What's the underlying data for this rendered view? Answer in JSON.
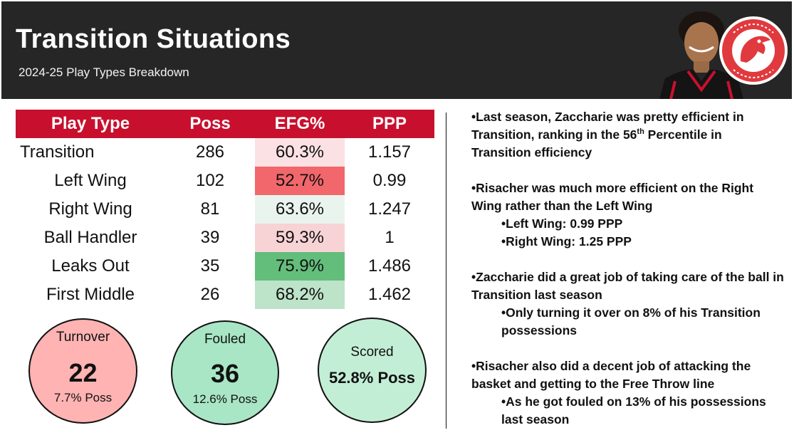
{
  "header": {
    "title": "Transition Situations",
    "subtitle": "2024-25 Play Types Breakdown",
    "logo_text": "ATLANTA HAWKS BASKETBALL"
  },
  "colors": {
    "header_bg": "#262626",
    "table_header": "#c8102e",
    "turnover_circle": "#ffb3b3",
    "fouled_circle": "#a8e6c5",
    "scored_circle": "#c3eed6"
  },
  "chart_data": {
    "type": "table",
    "columns": [
      "Play Type",
      "Poss",
      "EFG%",
      "PPP"
    ],
    "rows": [
      {
        "play_type": "Transition",
        "poss": "286",
        "efg": "60.3%",
        "ppp": "1.157",
        "efg_color": "#fbe1e3"
      },
      {
        "play_type": "Left Wing",
        "poss": "102",
        "efg": "52.7%",
        "ppp": "0.99",
        "efg_color": "#f1676b"
      },
      {
        "play_type": "Right Wing",
        "poss": "81",
        "efg": "63.6%",
        "ppp": "1.247",
        "efg_color": "#eaf4ee"
      },
      {
        "play_type": "Ball Handler",
        "poss": "39",
        "efg": "59.3%",
        "ppp": "1",
        "efg_color": "#f8d3d6"
      },
      {
        "play_type": "Leaks Out",
        "poss": "35",
        "efg": "75.9%",
        "ppp": "1.486",
        "efg_color": "#63be7b"
      },
      {
        "play_type": "First Middle",
        "poss": "26",
        "efg": "68.2%",
        "ppp": "1.462",
        "efg_color": "#bde3c9"
      }
    ]
  },
  "summary": {
    "turnover": {
      "label": "Turnover",
      "value": "22",
      "sub": "7.7% Poss"
    },
    "fouled": {
      "label": "Fouled",
      "value": "36",
      "sub": "12.6% Poss"
    },
    "scored": {
      "label": "Scored",
      "value": "52.8% Poss"
    }
  },
  "notes": {
    "n1_pre": "•Last season, Zaccharie was pretty efficient in Transition, ranking in the 56",
    "n1_sup": "th",
    "n1_post": " Percentile in Transition efficiency",
    "n2": "•Risacher was much more efficient on the Right Wing rather than the Left Wing",
    "n2a": "•Left Wing: 0.99 PPP",
    "n2b": "•Right Wing: 1.25 PPP",
    "n3": "•Zaccharie did a great job of taking care of the ball in Transition last season",
    "n3a": "•Only turning it over on 8% of his Transition possessions",
    "n4": "•Risacher also did a decent job of attacking the basket and getting to the Free Throw line",
    "n4a": "•As he got fouled on 13% of his possessions last season"
  }
}
